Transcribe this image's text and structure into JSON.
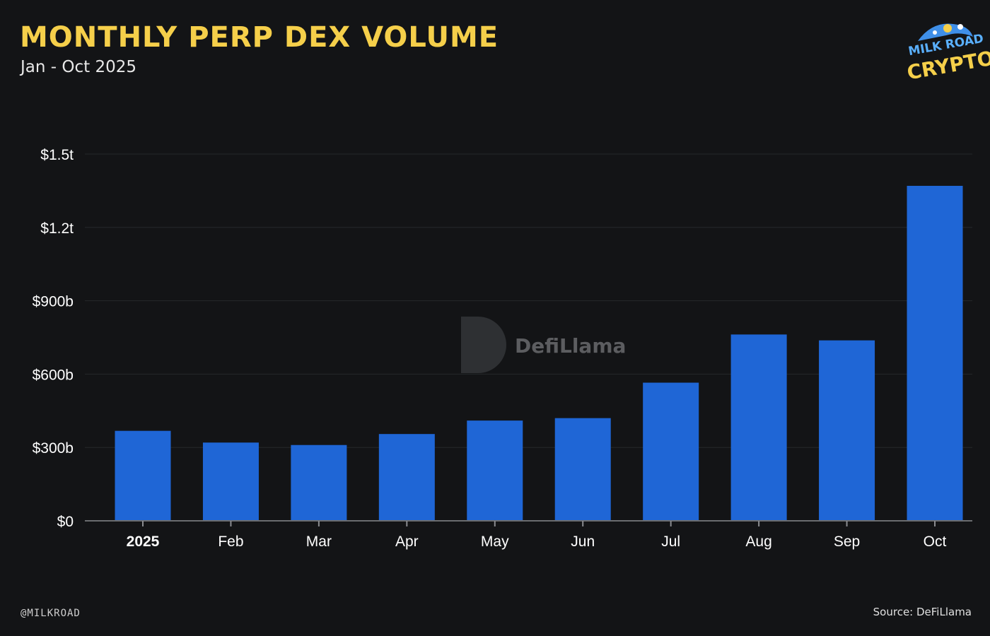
{
  "header": {
    "title": "MONTHLY PERP DEX VOLUME",
    "subtitle": "Jan - Oct 2025"
  },
  "logo": {
    "top": "MILK ROAD",
    "bottom": "CRYPTO"
  },
  "watermark": {
    "text": "DefiLlama"
  },
  "footer": {
    "handle": "@MILKROAD",
    "source": "Source: DeFiLlama"
  },
  "colors": {
    "background": "#131416",
    "bar": "#1f66d6",
    "title": "#f5cf4a",
    "grid": "#26282b"
  },
  "chart_data": {
    "type": "bar",
    "categories": [
      "2025",
      "Feb",
      "Mar",
      "Apr",
      "May",
      "Jun",
      "Jul",
      "Aug",
      "Sep",
      "Oct"
    ],
    "values": [
      368,
      320,
      310,
      355,
      410,
      420,
      565,
      762,
      738,
      1370
    ],
    "unit": "billion USD",
    "ylim": [
      0,
      1500
    ],
    "yticks": [
      0,
      300,
      600,
      900,
      1200,
      1500
    ],
    "ytick_labels": [
      "$0",
      "$300b",
      "$600b",
      "$900b",
      "$1.2t",
      "$1.5t"
    ],
    "bold_category": "2025",
    "grid": true,
    "legend": "none"
  }
}
